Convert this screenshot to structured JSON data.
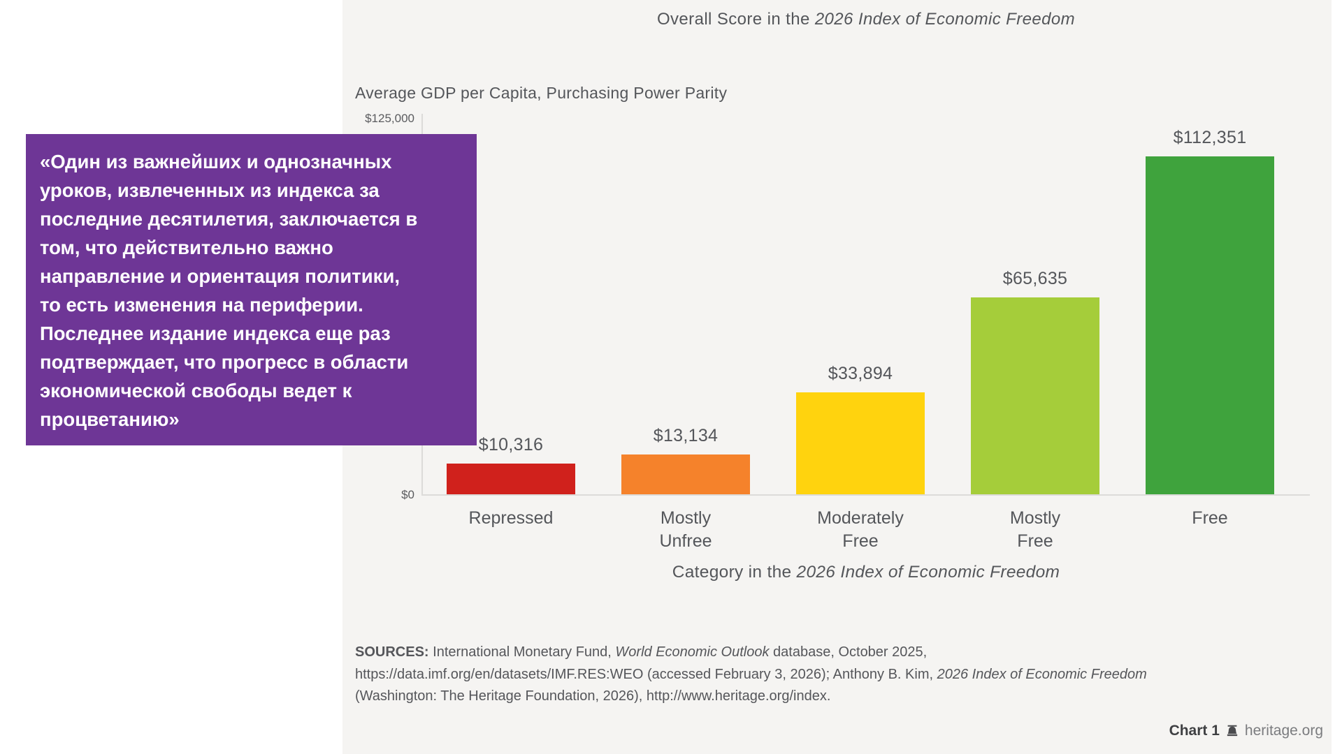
{
  "quote": {
    "lines": [
      "«Один из важнейших и однозначных",
      "уроков, извлеченных из индекса за",
      "последние десятилетия, заключается в",
      "том, что действительно важно",
      "направление и ориентация политики,",
      "то есть изменения на периферии.",
      "Последнее издание индекса еще раз",
      "подтверждает, что прогресс в области",
      "экономической свободы ведет к",
      "процветанию»"
    ],
    "background_color": "#6e3696"
  },
  "chart_data": {
    "type": "bar",
    "title": "Overall Score in the 2026 Index of Economic Freedom",
    "title_parts": {
      "regular": "Overall Score in the ",
      "italic": "2026 Index of Economic Freedom"
    },
    "subtitle": "Average GDP per Capita, Purchasing Power Parity",
    "categories": [
      "Repressed",
      "Mostly\nUnfree",
      "Moderately\nFree",
      "Mostly\nFree",
      "Free"
    ],
    "values": [
      10316,
      13134,
      33894,
      65635,
      112351
    ],
    "value_labels": [
      "$10,316",
      "$13,134",
      "$33,894",
      "$65,635",
      "$112,351"
    ],
    "bar_colors": [
      "#d0211c",
      "#f5822b",
      "#ffd30e",
      "#a5cd3a",
      "#3fa33d"
    ],
    "ylim": [
      0,
      125000
    ],
    "y_ticks": [
      "$0",
      "$125,000"
    ],
    "xlabel": "Category in the 2026 Index of Economic Freedom",
    "xlabel_parts": {
      "regular": "Category in the ",
      "italic": "2026 Index of Economic Freedom"
    },
    "grid": false,
    "legend": false
  },
  "sources": {
    "label": "SOURCES:",
    "line1_a": " International Monetary Fund, ",
    "line1_italic": "World Economic Outlook",
    "line1_b": " database, October 2025,",
    "line2_a": "https://data.imf.org/en/datasets/IMF.RES:WEO (accessed February 3, 2026); Anthony B. Kim, ",
    "line2_italic": "2026 Index of Economic Freedom",
    "line3": "(Washington: The Heritage Foundation, 2026), http://www.heritage.org/index."
  },
  "footer": {
    "chart_label": "Chart 1",
    "site": "heritage.org"
  }
}
